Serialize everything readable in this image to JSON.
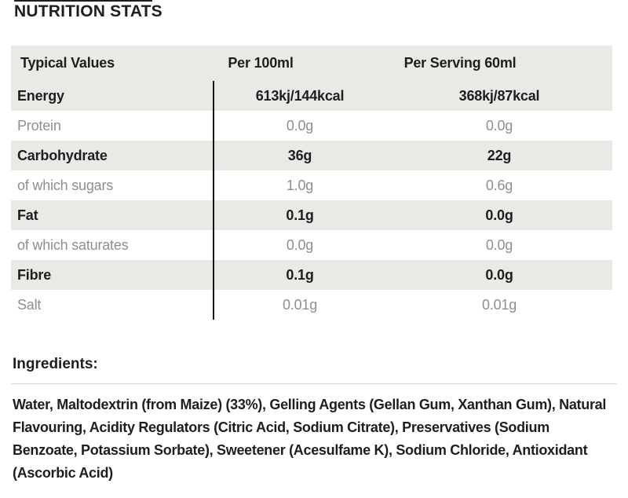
{
  "title": "NUTRITION STATS",
  "table": {
    "columns": [
      "Typical Values",
      "Per 100ml",
      "Per Serving 60ml"
    ],
    "rows": [
      {
        "label": "Energy",
        "per_100ml": "613kj/144kcal",
        "per_serving_60ml": "368kj/87kcal",
        "emphasis": true
      },
      {
        "label": "Protein",
        "per_100ml": "0.0g",
        "per_serving_60ml": "0.0g",
        "emphasis": false
      },
      {
        "label": "Carbohydrate",
        "per_100ml": "36g",
        "per_serving_60ml": "22g",
        "emphasis": true
      },
      {
        "label": "of which sugars",
        "per_100ml": "1.0g",
        "per_serving_60ml": "0.6g",
        "emphasis": false
      },
      {
        "label": "Fat",
        "per_100ml": "0.1g",
        "per_serving_60ml": "0.0g",
        "emphasis": true
      },
      {
        "label": "of which saturates",
        "per_100ml": "0.0g",
        "per_serving_60ml": "0.0g",
        "emphasis": false
      },
      {
        "label": "Fibre",
        "per_100ml": "0.1g",
        "per_serving_60ml": "0.0g",
        "emphasis": true
      },
      {
        "label": "Salt",
        "per_100ml": "0.01g",
        "per_serving_60ml": "0.01g",
        "emphasis": false
      }
    ]
  },
  "ingredients": {
    "heading": "Ingredients:",
    "text": "Water, Maltodextrin (from Maize) (33%), Gelling Agents (Gellan Gum, Xanthan Gum), Natural Flavouring, Acidity Regulators (Citric Acid, Sodium Citrate), Preservatives (Sodium Benzoate, Potassium Sorbate), Sweetener (Acesulfame K), Sodium Chloride, Antioxidant (Ascorbic Acid)"
  },
  "colors": {
    "dark_text": "#1d1e20",
    "muted_text": "#8e8e8c",
    "row_background": "#ebe9e6",
    "column_divider": "#141414",
    "horizontal_rule": "#dcdad7"
  }
}
